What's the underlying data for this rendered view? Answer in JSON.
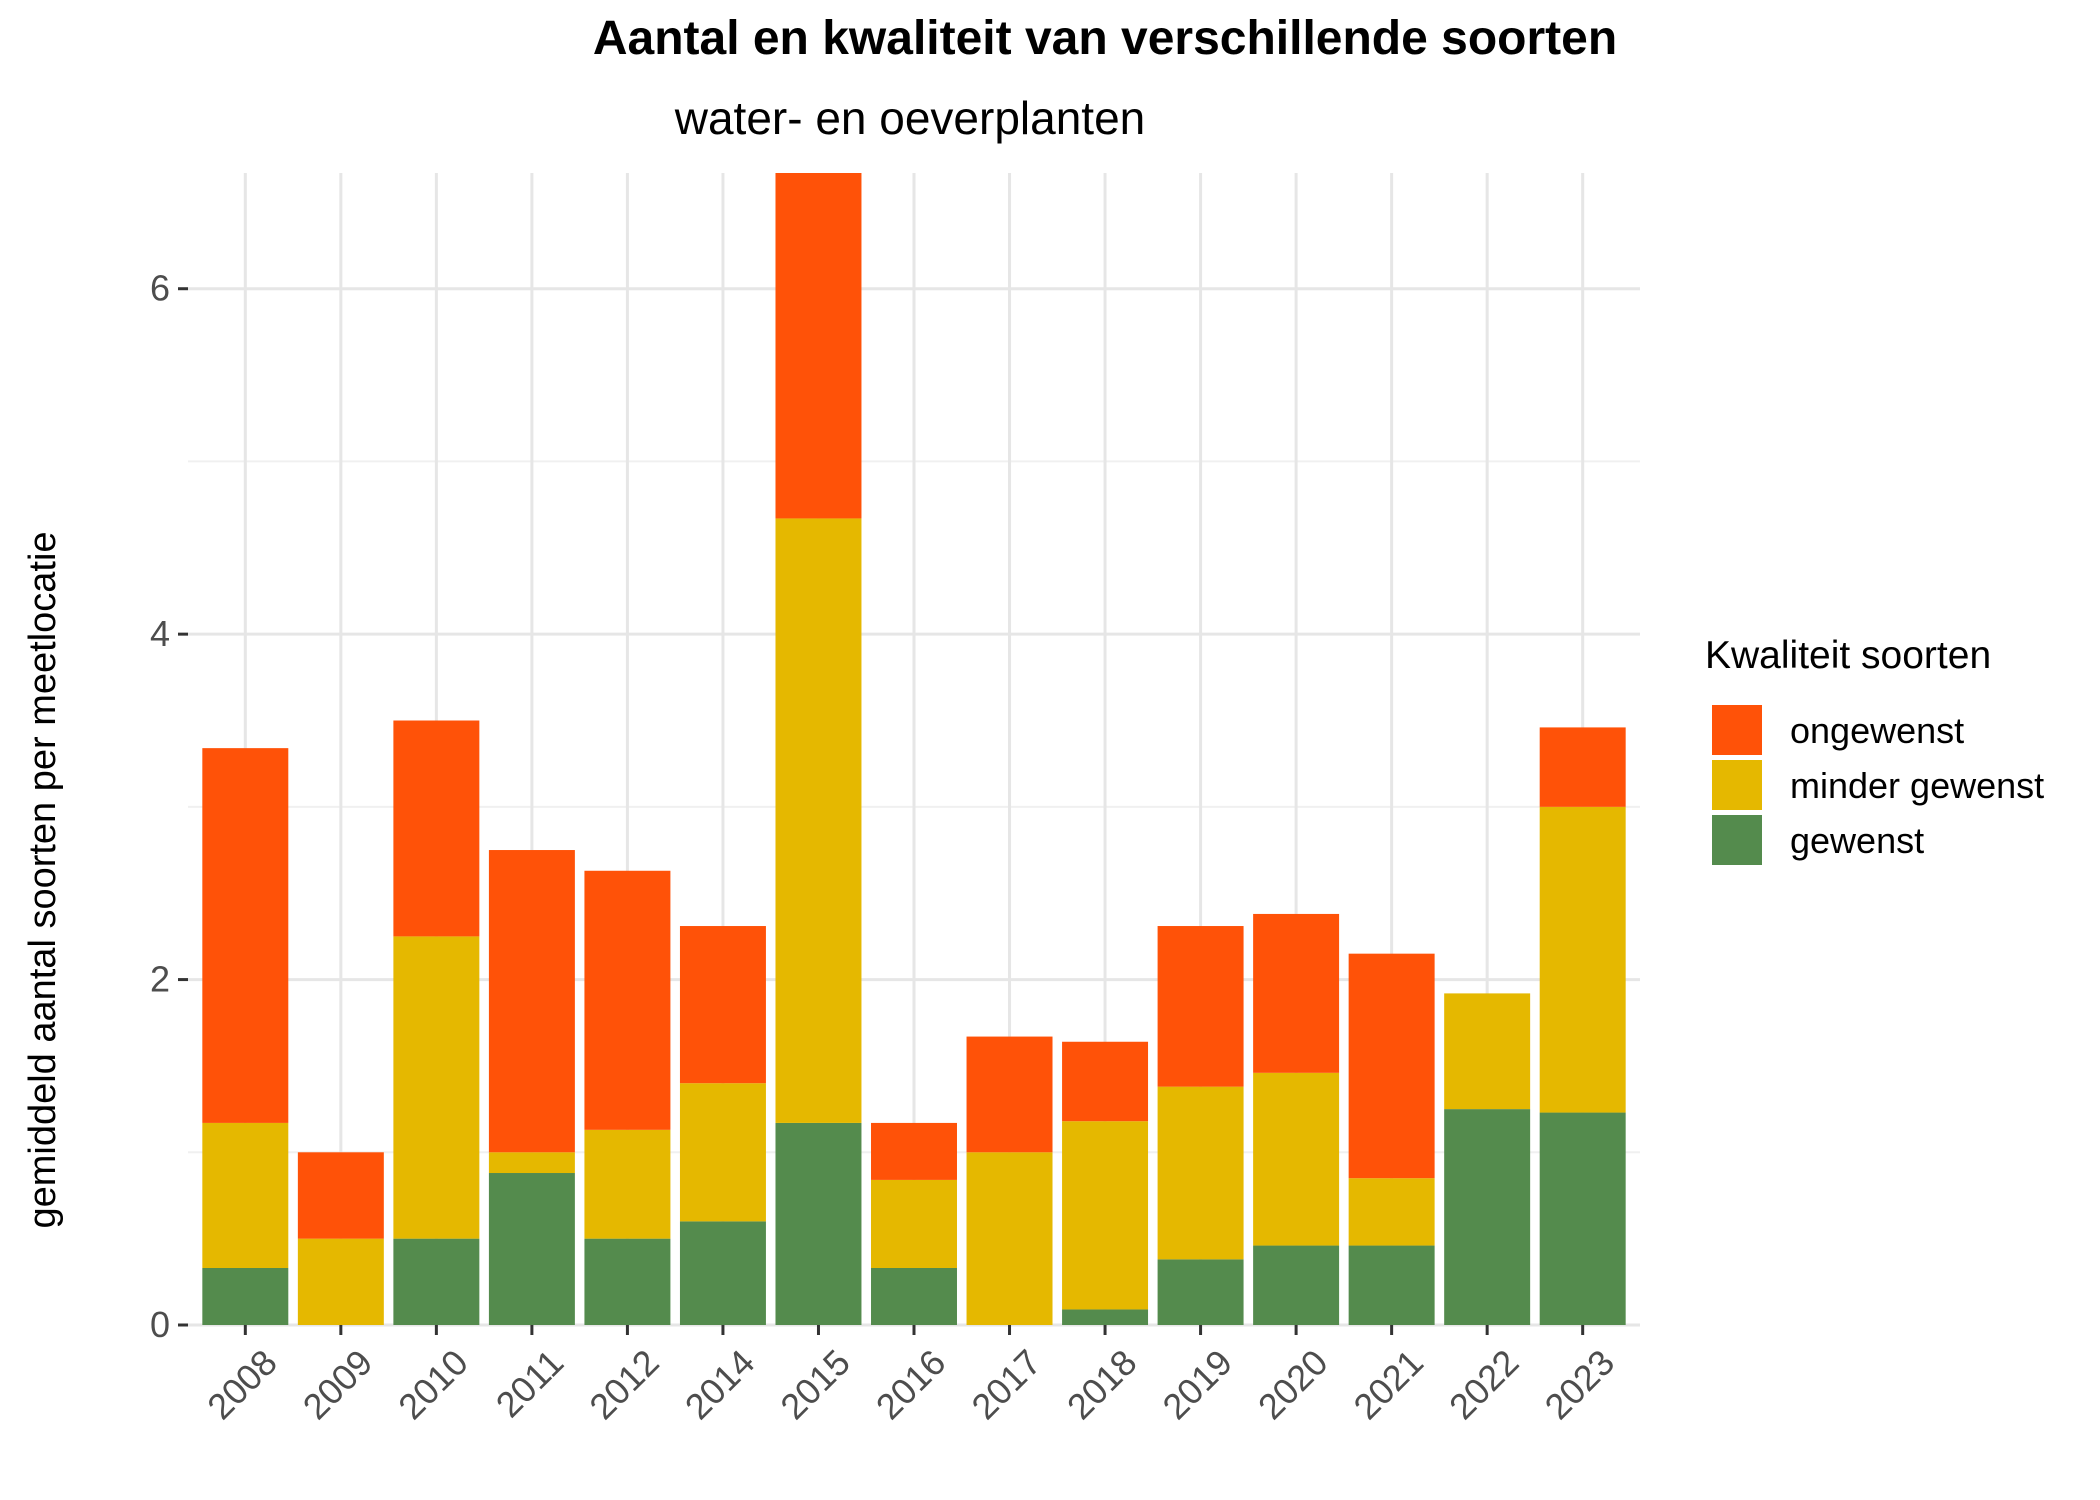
{
  "chart_data": {
    "type": "bar",
    "stacked": true,
    "title": "Aantal en kwaliteit van verschillende soorten",
    "subtitle": "water- en oeverplanten",
    "xlabel": "",
    "ylabel": "gemiddeld aantal soorten per meetlocatie",
    "ylim": [
      0,
      6.67
    ],
    "y_ticks": [
      0,
      2,
      4,
      6
    ],
    "grid": true,
    "legend_title": "Kwaliteit soorten",
    "legend_position": "right",
    "categories": [
      "2008",
      "2009",
      "2010",
      "2011",
      "2012",
      "2014",
      "2015",
      "2016",
      "2017",
      "2018",
      "2019",
      "2020",
      "2021",
      "2022",
      "2023"
    ],
    "series": [
      {
        "name": "gewenst",
        "color": "#548b4d",
        "values": [
          0.33,
          0.0,
          0.5,
          0.88,
          0.5,
          0.6,
          1.17,
          0.33,
          0.0,
          0.09,
          0.38,
          0.46,
          0.46,
          1.25,
          1.23
        ]
      },
      {
        "name": "minder gewenst",
        "color": "#e5b800",
        "values": [
          0.84,
          0.5,
          1.75,
          0.12,
          0.63,
          0.8,
          3.5,
          0.51,
          1.0,
          1.09,
          1.0,
          1.0,
          0.39,
          0.67,
          1.77
        ]
      },
      {
        "name": "ongewenst",
        "color": "#ff5208",
        "values": [
          2.17,
          0.5,
          1.25,
          1.75,
          1.5,
          0.91,
          2.0,
          0.33,
          0.67,
          0.46,
          0.93,
          0.92,
          1.3,
          0.0,
          0.46
        ]
      }
    ],
    "legend_order": [
      "ongewenst",
      "minder gewenst",
      "gewenst"
    ]
  }
}
